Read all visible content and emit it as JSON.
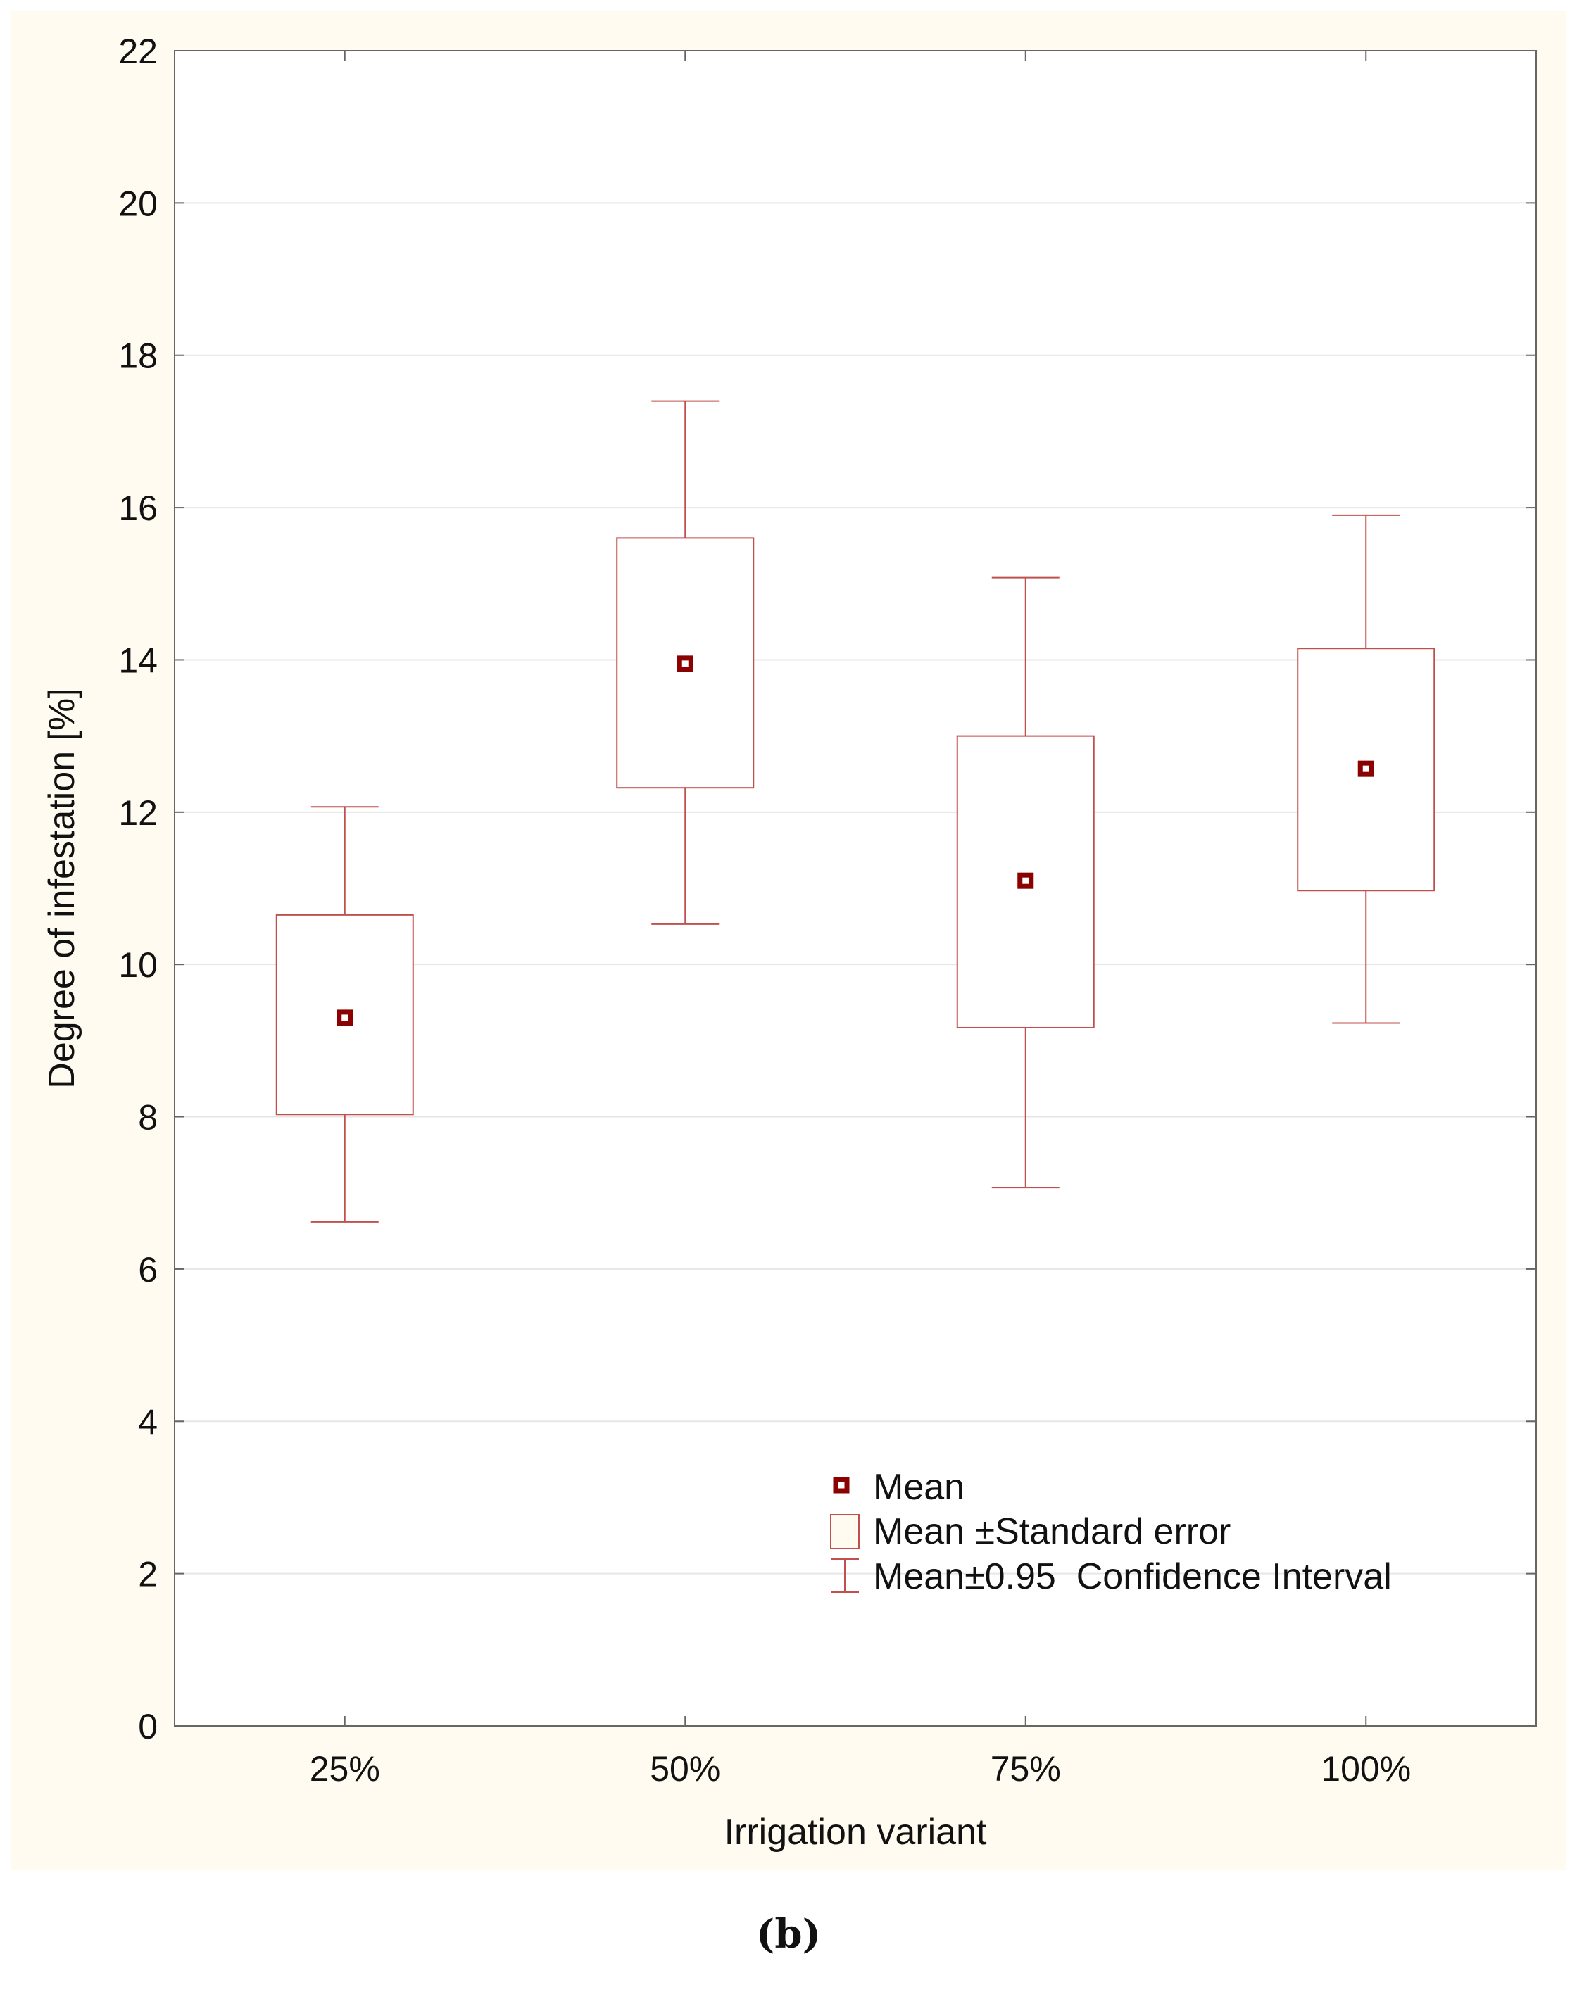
{
  "caption": "(b)",
  "chart_data": {
    "type": "box",
    "title": "",
    "xlabel": "Irrigation variant",
    "ylabel": "Degree of infestation [%]",
    "ylim": [
      0,
      22
    ],
    "yticks": [
      0,
      2,
      4,
      6,
      8,
      10,
      12,
      14,
      16,
      18,
      20,
      22
    ],
    "grid": true,
    "categories": [
      "25%",
      "50%",
      "75%",
      "100%"
    ],
    "mean": [
      9.3,
      13.95,
      11.1,
      12.57
    ],
    "se_low": [
      8.03,
      12.32,
      9.17,
      10.97
    ],
    "se_high": [
      10.65,
      15.6,
      13.0,
      14.15
    ],
    "ci_low": [
      6.62,
      10.53,
      7.07,
      9.23
    ],
    "ci_high": [
      12.07,
      17.4,
      15.08,
      15.9
    ],
    "legend": {
      "position": "bottom-right",
      "mean_label": "Mean",
      "box_label": "Mean ±Standard error",
      "whisker_label": "Mean±0.95  Confidence Interval"
    },
    "colors": {
      "box": "#c0504d",
      "mean_marker": "#8b0000",
      "grid": "#e6e6e6",
      "axis": "#666666",
      "panel_bg": "#fffbf0"
    }
  }
}
